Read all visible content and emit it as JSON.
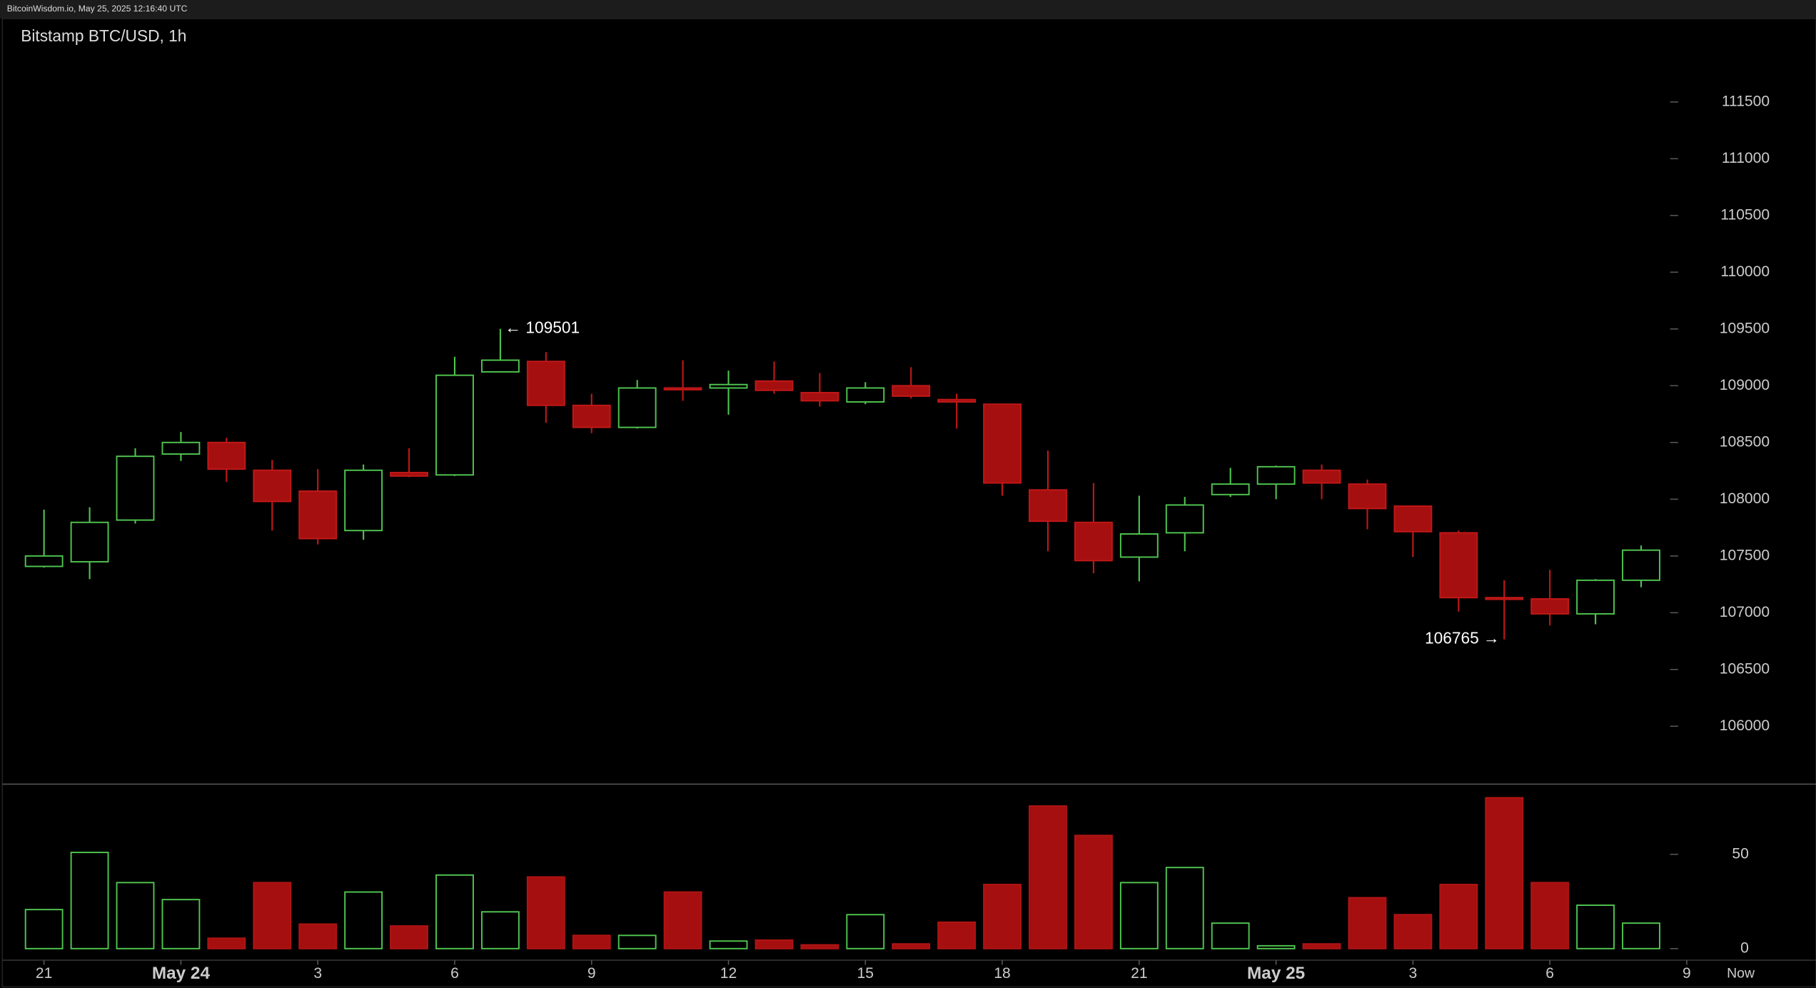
{
  "chart_data": {
    "type": "candlestick",
    "header": "BitcoinWisdom.io, May 25, 2025 12:16:40 UTC",
    "title": "Bitstamp BTC/USD, 1h",
    "up_color": "#4fc44f",
    "down_color": "#a50f0f",
    "open": [
      107408,
      107449,
      107816,
      108398,
      108500,
      108255,
      108071,
      107724,
      108235,
      108214,
      109122,
      109214,
      108827,
      108633,
      108980,
      108980,
      109041,
      108939,
      108857,
      109000,
      108878,
      108837,
      108082,
      107796,
      107490,
      107704,
      108041,
      108133,
      108255,
      108133,
      107939,
      107704,
      107133,
      107122,
      106990,
      107286
    ],
    "high": [
      107908,
      107929,
      108449,
      108592,
      108541,
      108347,
      108265,
      108306,
      108449,
      109255,
      109501,
      109296,
      108929,
      109051,
      109224,
      109133,
      109214,
      109112,
      109031,
      109163,
      108929,
      108837,
      108429,
      108143,
      108031,
      108020,
      108276,
      108296,
      108306,
      108173,
      107939,
      107724,
      107286,
      107378,
      107296,
      107592
    ],
    "low": [
      107398,
      107296,
      107786,
      108337,
      108153,
      107724,
      107602,
      107643,
      108194,
      108204,
      109122,
      108673,
      108582,
      108622,
      108867,
      108745,
      108929,
      108816,
      108837,
      108888,
      108622,
      108031,
      107541,
      107347,
      107276,
      107541,
      108020,
      108000,
      108000,
      107735,
      107490,
      107010,
      106765,
      106888,
      106898,
      107224
    ],
    "close": [
      107500,
      107796,
      108378,
      108500,
      108265,
      107980,
      107653,
      108255,
      108204,
      109092,
      109225,
      108827,
      108633,
      108980,
      108969,
      109010,
      108959,
      108867,
      108980,
      108908,
      108857,
      108143,
      107806,
      107459,
      107694,
      107949,
      108133,
      108286,
      108143,
      107918,
      107714,
      107133,
      107122,
      106990,
      107286,
      107551
    ],
    "volume": [
      20.7,
      51,
      35,
      26,
      5.5,
      35,
      13,
      30,
      12,
      39,
      19.5,
      38,
      7,
      7,
      30,
      4,
      4.5,
      2,
      18,
      2.5,
      14,
      34,
      75.6,
      60,
      35,
      43,
      13.5,
      1.5,
      2.5,
      27,
      18,
      34,
      80,
      35,
      23,
      13.5
    ],
    "ylim": [
      105500,
      112000
    ],
    "yticks": [
      106000,
      106500,
      107000,
      107500,
      108000,
      108500,
      109000,
      109500,
      110000,
      110500,
      111000,
      111500
    ],
    "volume_ylim": [
      0,
      85
    ],
    "volume_yticks": [
      0,
      50
    ],
    "xticks": [
      {
        "value": 0,
        "label": "21"
      },
      {
        "value": 3,
        "label": "May 24"
      },
      {
        "value": 6,
        "label": "3"
      },
      {
        "value": 9,
        "label": "6"
      },
      {
        "value": 12,
        "label": "9"
      },
      {
        "value": 15,
        "label": "12"
      },
      {
        "value": 18,
        "label": "15"
      },
      {
        "value": 21,
        "label": "18"
      },
      {
        "value": 24,
        "label": "21"
      },
      {
        "value": 27,
        "label": "May 25"
      },
      {
        "value": 30,
        "label": "3"
      },
      {
        "value": 33,
        "label": "6"
      },
      {
        "value": 36,
        "label": "9"
      }
    ],
    "now_label": "Now",
    "annotations": [
      {
        "text": "← 109501",
        "value": 109501
      },
      {
        "text": "106765 →",
        "value": 106765
      }
    ]
  }
}
